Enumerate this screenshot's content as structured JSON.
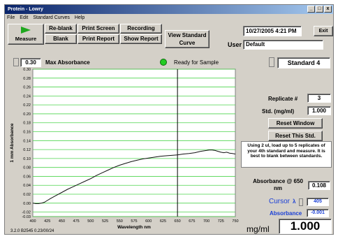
{
  "window": {
    "title": "Protein - Lowry",
    "menu": [
      "File",
      "Edit",
      "Standard Curves",
      "Help"
    ],
    "controls": [
      "_",
      "□",
      "x"
    ]
  },
  "toolbar": {
    "measure_label": "Measure",
    "reblank_label": "Re-blank",
    "blank_label": "Blank",
    "print_screen_label": "Print Screen",
    "print_report_label": "Print Report",
    "recording_label": "Recording",
    "show_report_label": "Show Report",
    "view_std_curve_label": "View Standard Curve",
    "datetime": "10/27/2005  4:21 PM",
    "exit_label": "Exit",
    "user_label": "User",
    "user_value": "Default"
  },
  "chart_header": {
    "max_abs_value": "0.30",
    "max_abs_label": "Max Absorbance",
    "status_text": "Ready for Sample",
    "status_color": "#22cc22"
  },
  "right_panel": {
    "standard_value": "Standard 4",
    "replicate_label": "Replicate #",
    "replicate_value": "3",
    "std_label": "Std. (mg/ml)",
    "std_value": "1.000",
    "reset_window_label": "Reset Window",
    "reset_std_label": "Reset This Std.",
    "instructions": "Using 2 ul, load up to 5 replicates of your 4th standard and measure. It is best to blank between standards.",
    "abs_at_label": "Absorbance @ 650 nm",
    "abs_at_value": "0.108",
    "cursor_label": "Cursor",
    "cursor_lambda": "λ",
    "cursor_value": "405",
    "absorbance_label": "Absorbance",
    "absorbance_value": "-0.001",
    "units_label": "mg/ml",
    "result_value": "1.000"
  },
  "footer": {
    "version": "3.2.0 B2545 0.23/00/24"
  },
  "colors": {
    "grid_line": "#4cd44c",
    "plot_bg": "#ffffff",
    "cursor_blue": "#1a3fd6"
  },
  "chart_data": {
    "type": "line",
    "xlabel": "Wavelength  nm",
    "ylabel": "1 mm Absorbance",
    "xlim": [
      400,
      750
    ],
    "ylim": [
      -0.03,
      0.3
    ],
    "x_ticks": [
      400,
      425,
      450,
      475,
      500,
      525,
      550,
      575,
      600,
      625,
      650,
      675,
      700,
      725,
      750
    ],
    "y_ticks": [
      0.3,
      0.28,
      0.26,
      0.24,
      0.22,
      0.2,
      0.18,
      0.16,
      0.14,
      0.12,
      0.1,
      0.08,
      0.06,
      0.04,
      0.02,
      0.0,
      -0.02,
      -0.03
    ],
    "grid": true,
    "cursor_x": 650,
    "series": [
      {
        "x": [
          400,
          405,
          410,
          415,
          420,
          425,
          430,
          440,
          450,
          460,
          470,
          480,
          490,
          500,
          510,
          520,
          530,
          540,
          550,
          560,
          570,
          580,
          590,
          600,
          610,
          620,
          630,
          640,
          650,
          660,
          670,
          680,
          690,
          700,
          705,
          710,
          715,
          720,
          725,
          730,
          735,
          740,
          745,
          750
        ],
        "values": [
          0.0,
          -0.001,
          -0.001,
          0.0,
          0.002,
          0.006,
          0.01,
          0.017,
          0.024,
          0.031,
          0.037,
          0.043,
          0.049,
          0.055,
          0.062,
          0.068,
          0.074,
          0.08,
          0.085,
          0.089,
          0.093,
          0.096,
          0.099,
          0.101,
          0.103,
          0.105,
          0.106,
          0.107,
          0.108,
          0.11,
          0.111,
          0.113,
          0.116,
          0.118,
          0.119,
          0.119,
          0.118,
          0.116,
          0.114,
          0.113,
          0.114,
          0.112,
          0.111,
          0.11
        ]
      }
    ]
  }
}
